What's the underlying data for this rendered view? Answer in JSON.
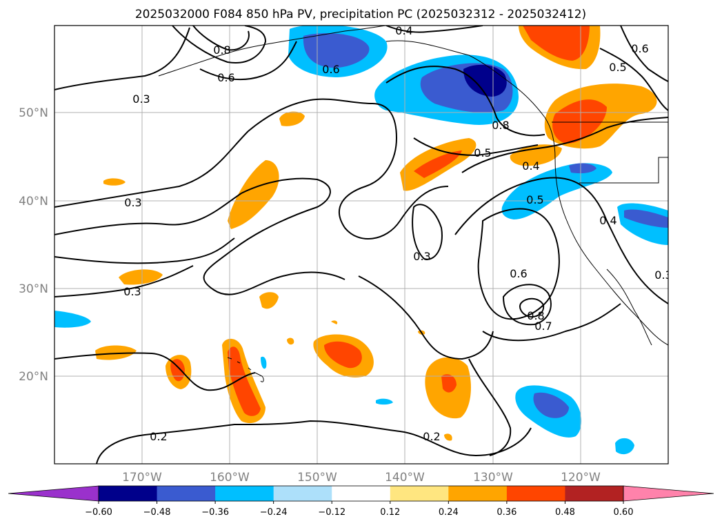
{
  "title": "2025032000 F084 850 hPa PV, precipitation PC (2025032312 - 2025032412)",
  "map": {
    "lon_ticks": [
      "170°W",
      "160°W",
      "150°W",
      "140°W",
      "130°W",
      "120°W"
    ],
    "lat_ticks": [
      "50°N",
      "40°N",
      "30°N",
      "20°N"
    ],
    "contour_labels": [
      "0.4",
      "0.8",
      "0.6",
      "0.6",
      "0.3",
      "0.8",
      "0.5",
      "0.4",
      "0.5",
      "0.6",
      "0.5",
      "0.3",
      "0.3",
      "0.3",
      "0.4",
      "0.3",
      "0.6",
      "0.8",
      "0.7",
      "0.2",
      "0.2"
    ]
  },
  "colorbar": {
    "ticks": [
      "−0.60",
      "−0.48",
      "−0.36",
      "−0.24",
      "−0.12",
      "0.12",
      "0.24",
      "0.36",
      "0.48",
      "0.60"
    ],
    "colors": [
      "#9a31cc",
      "#00008b",
      "#3a5bd0",
      "#00bfff",
      "#ade0fa",
      "#ffffff",
      "#ffe680",
      "#ffa500",
      "#ff4500",
      "#b22222",
      "#ff82ab"
    ]
  }
}
